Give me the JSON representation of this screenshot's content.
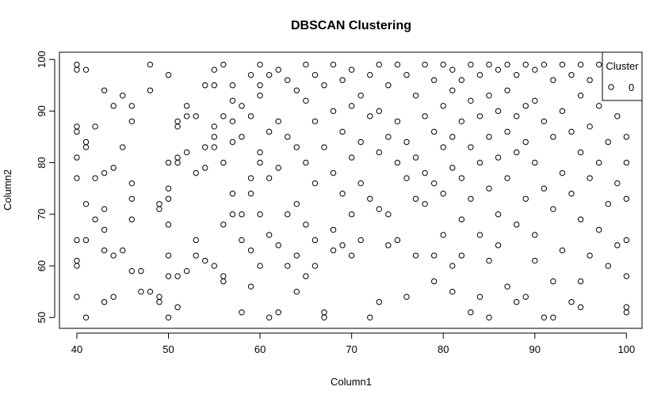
{
  "chart_data": {
    "type": "scatter",
    "title": "DBSCAN Clustering",
    "xlabel": "Column1",
    "ylabel": "Column2",
    "legend_title": "Cluster",
    "legend": "topright",
    "xlim": [
      38.1,
      101.7
    ],
    "ylim": [
      47.9,
      101.4
    ],
    "xticks": [
      40,
      50,
      60,
      70,
      80,
      90,
      100
    ],
    "yticks": [
      50,
      60,
      70,
      80,
      90,
      100
    ],
    "x": [
      40,
      40,
      40,
      40,
      40,
      40,
      40,
      40,
      40,
      40,
      41,
      41,
      41,
      41,
      41,
      41,
      42,
      42,
      42,
      43,
      43,
      43,
      43,
      43,
      43,
      44,
      44,
      44,
      44,
      45,
      45,
      45,
      46,
      46,
      46,
      46,
      46,
      46,
      47,
      47,
      48,
      48,
      48,
      49,
      49,
      49,
      49,
      50,
      50,
      50,
      50,
      50,
      50,
      50,
      50,
      51,
      51,
      51,
      51,
      51,
      51,
      52,
      52,
      52,
      52,
      53,
      53,
      53,
      53,
      54,
      54,
      54,
      54,
      55,
      55,
      55,
      55,
      55,
      55,
      56,
      56,
      56,
      56,
      56,
      56,
      57,
      57,
      57,
      57,
      57,
      57,
      58,
      58,
      58,
      58,
      58,
      59,
      59,
      59,
      59,
      59,
      59,
      60,
      60,
      60,
      60,
      60,
      60,
      60,
      61,
      61,
      61,
      61,
      61,
      62,
      62,
      62,
      62,
      62,
      63,
      63,
      63,
      63,
      64,
      64,
      64,
      64,
      64,
      65,
      65,
      65,
      65,
      65,
      66,
      66,
      66,
      66,
      66,
      67,
      67,
      67,
      67,
      68,
      68,
      68,
      68,
      68,
      69,
      69,
      69,
      69,
      70,
      70,
      70,
      70,
      70,
      71,
      71,
      71,
      71,
      72,
      72,
      72,
      72,
      73,
      73,
      73,
      73,
      73,
      74,
      74,
      74,
      74,
      75,
      75,
      75,
      75,
      76,
      76,
      76,
      76,
      77,
      77,
      77,
      77,
      78,
      78,
      78,
      78,
      79,
      79,
      79,
      79,
      79,
      80,
      80,
      80,
      80,
      80,
      81,
      81,
      81,
      81,
      81,
      81,
      82,
      82,
      82,
      82,
      82,
      83,
      83,
      83,
      83,
      83,
      84,
      84,
      84,
      84,
      84,
      85,
      85,
      85,
      85,
      85,
      85,
      86,
      86,
      86,
      86,
      86,
      87,
      87,
      87,
      87,
      87,
      88,
      88,
      88,
      88,
      88,
      89,
      89,
      89,
      89,
      89,
      90,
      90,
      90,
      90,
      90,
      91,
      91,
      91,
      91,
      92,
      92,
      92,
      92,
      92,
      93,
      93,
      93,
      93,
      94,
      94,
      94,
      94,
      95,
      95,
      95,
      95,
      95,
      95,
      96,
      96,
      96,
      96,
      97,
      97,
      97,
      97,
      98,
      98,
      98,
      98,
      99,
      99,
      99,
      99,
      100,
      100,
      100,
      100,
      100,
      100,
      100
    ],
    "series": [
      {
        "name": "0",
        "color": "#000000",
        "values": [
          99,
          98,
          87,
          86,
          81,
          77,
          65,
          61,
          60,
          54,
          98,
          84,
          83,
          72,
          65,
          50,
          87,
          77,
          69,
          94,
          78,
          71,
          67,
          63,
          53,
          91,
          79,
          62,
          54,
          93,
          83,
          63,
          91,
          88,
          76,
          73,
          69,
          59,
          59,
          55,
          99,
          94,
          55,
          72,
          71,
          54,
          53,
          97,
          80,
          75,
          73,
          68,
          62,
          58,
          50,
          88,
          87,
          81,
          80,
          58,
          52,
          91,
          89,
          82,
          59,
          89,
          78,
          65,
          62,
          95,
          83,
          79,
          61,
          98,
          95,
          87,
          85,
          83,
          60,
          99,
          89,
          80,
          68,
          58,
          57,
          95,
          92,
          88,
          84,
          74,
          70,
          91,
          85,
          70,
          65,
          51,
          97,
          89,
          77,
          74,
          63,
          56,
          99,
          95,
          93,
          82,
          80,
          70,
          60,
          97,
          86,
          77,
          66,
          50,
          98,
          88,
          79,
          64,
          51,
          96,
          85,
          70,
          60,
          94,
          83,
          72,
          62,
          55,
          99,
          92,
          80,
          68,
          58,
          97,
          88,
          76,
          65,
          60,
          95,
          83,
          51,
          50,
          99,
          90,
          78,
          67,
          63,
          96,
          86,
          74,
          64,
          98,
          91,
          81,
          70,
          62,
          93,
          84,
          76,
          65,
          97,
          89,
          73,
          50,
          99,
          90,
          82,
          71,
          53,
          95,
          85,
          70,
          64,
          99,
          88,
          80,
          65,
          97,
          84,
          77,
          54,
          93,
          81,
          73,
          62,
          99,
          89,
          78,
          72,
          96,
          86,
          76,
          62,
          57,
          99,
          91,
          83,
          74,
          66,
          98,
          94,
          85,
          79,
          60,
          55,
          96,
          88,
          77,
          69,
          62,
          99,
          92,
          83,
          73,
          51,
          97,
          89,
          80,
          66,
          54,
          99,
          93,
          85,
          75,
          61,
          50,
          98,
          90,
          81,
          70,
          64,
          99,
          94,
          86,
          77,
          56,
          97,
          89,
          82,
          68,
          53,
          99,
          91,
          84,
          73,
          54,
          98,
          92,
          80,
          66,
          61,
          99,
          88,
          75,
          50,
          96,
          85,
          71,
          57,
          50,
          99,
          90,
          78,
          63,
          97,
          86,
          74,
          53,
          99,
          93,
          82,
          69,
          57,
          52,
          96,
          87,
          77,
          62,
          99,
          91,
          80,
          67,
          94,
          84,
          72,
          60,
          97,
          89,
          76,
          64,
          85,
          80,
          73,
          65,
          58,
          52,
          51
        ]
      }
    ]
  }
}
